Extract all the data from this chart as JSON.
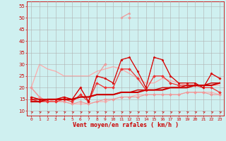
{
  "bg_color": "#cff0f0",
  "grid_color": "#b0b0b0",
  "xlabel": "Vent moyen/en rafales ( km/h )",
  "xlabel_color": "#cc0000",
  "tick_color": "#cc0000",
  "ylabel_ticks": [
    10,
    15,
    20,
    25,
    30,
    35,
    40,
    45,
    50,
    55
  ],
  "xlim": [
    -0.5,
    23.5
  ],
  "ylim": [
    8,
    57
  ],
  "x": [
    0,
    1,
    2,
    3,
    4,
    5,
    6,
    7,
    8,
    9,
    10,
    11,
    12,
    13,
    14,
    15,
    16,
    17,
    18,
    19,
    20,
    21,
    22,
    23
  ],
  "s_rafales_light": [
    null,
    null,
    null,
    null,
    null,
    null,
    null,
    null,
    null,
    null,
    null,
    50,
    52,
    null,
    null,
    null,
    null,
    null,
    null,
    null,
    null,
    null,
    null,
    null
  ],
  "s_rafales_med": [
    20,
    16,
    14,
    15,
    16,
    15,
    20,
    14,
    25,
    30,
    null,
    null,
    50,
    null,
    null,
    null,
    null,
    null,
    null,
    null,
    null,
    null,
    26,
    24
  ],
  "s_moyen_light": [
    20,
    30,
    28,
    27,
    25,
    25,
    25,
    25,
    27,
    28,
    29,
    28,
    26,
    24,
    22,
    22,
    24,
    23,
    22,
    21,
    21,
    21,
    21,
    21
  ],
  "s_vent_dark1": [
    16,
    15,
    15,
    15,
    16,
    15,
    20,
    14,
    25,
    24,
    22,
    32,
    33,
    27,
    20,
    33,
    32,
    25,
    22,
    22,
    22,
    20,
    26,
    24
  ],
  "s_vent_dark2": [
    15,
    14,
    14,
    14,
    15,
    14,
    17,
    14,
    22,
    20,
    20,
    28,
    28,
    24,
    19,
    25,
    25,
    22,
    21,
    21,
    21,
    20,
    20,
    18
  ],
  "s_trend1": [
    14,
    14,
    15,
    15,
    15,
    15,
    16,
    16,
    17,
    17,
    17,
    18,
    18,
    18,
    19,
    19,
    19,
    20,
    20,
    20,
    21,
    21,
    21,
    22
  ],
  "s_trend2": [
    15,
    15,
    15,
    15,
    15,
    15,
    16,
    16,
    17,
    17,
    17,
    18,
    18,
    19,
    19,
    19,
    20,
    20,
    20,
    21,
    21,
    21,
    22,
    22
  ],
  "s_low_pink": [
    20,
    16,
    14,
    14,
    14,
    13,
    13,
    13,
    14,
    14,
    15,
    16,
    16,
    17,
    17,
    17,
    17,
    17,
    17,
    18,
    18,
    18,
    18,
    17
  ],
  "s_low_med": [
    16,
    15,
    14,
    14,
    14,
    13,
    14,
    13,
    14,
    15,
    15,
    16,
    16,
    16,
    17,
    17,
    17,
    17,
    17,
    18,
    18,
    18,
    17,
    17
  ],
  "color_dark_red": "#cc0000",
  "color_medium_red": "#ee3333",
  "color_light_red": "#ee9999",
  "color_pink": "#ffaaaa"
}
